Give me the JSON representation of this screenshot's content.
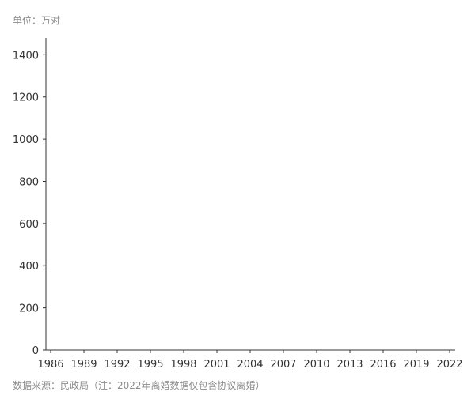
{
  "header": {
    "unit": "单位：万对"
  },
  "footer": {
    "source": "数据来源：民政局（注：2022年离婚数据仅包含协议离婚）"
  },
  "chart_data": {
    "type": "line",
    "title": "",
    "xlabel": "",
    "ylabel": "",
    "x_ticks": [
      "1986",
      "1989",
      "1992",
      "1995",
      "1998",
      "2001",
      "2004",
      "2007",
      "2010",
      "2013",
      "2016",
      "2019",
      "2022"
    ],
    "y_ticks": [
      "0",
      "200",
      "400",
      "600",
      "800",
      "1000",
      "1200",
      "1400"
    ],
    "xlim": [
      1986,
      2022
    ],
    "ylim": [
      0,
      1480
    ],
    "grid": false,
    "series": [],
    "colors": {
      "axis": "#333333",
      "tick_text": "#333333",
      "note_text": "#8c8c8c"
    }
  }
}
